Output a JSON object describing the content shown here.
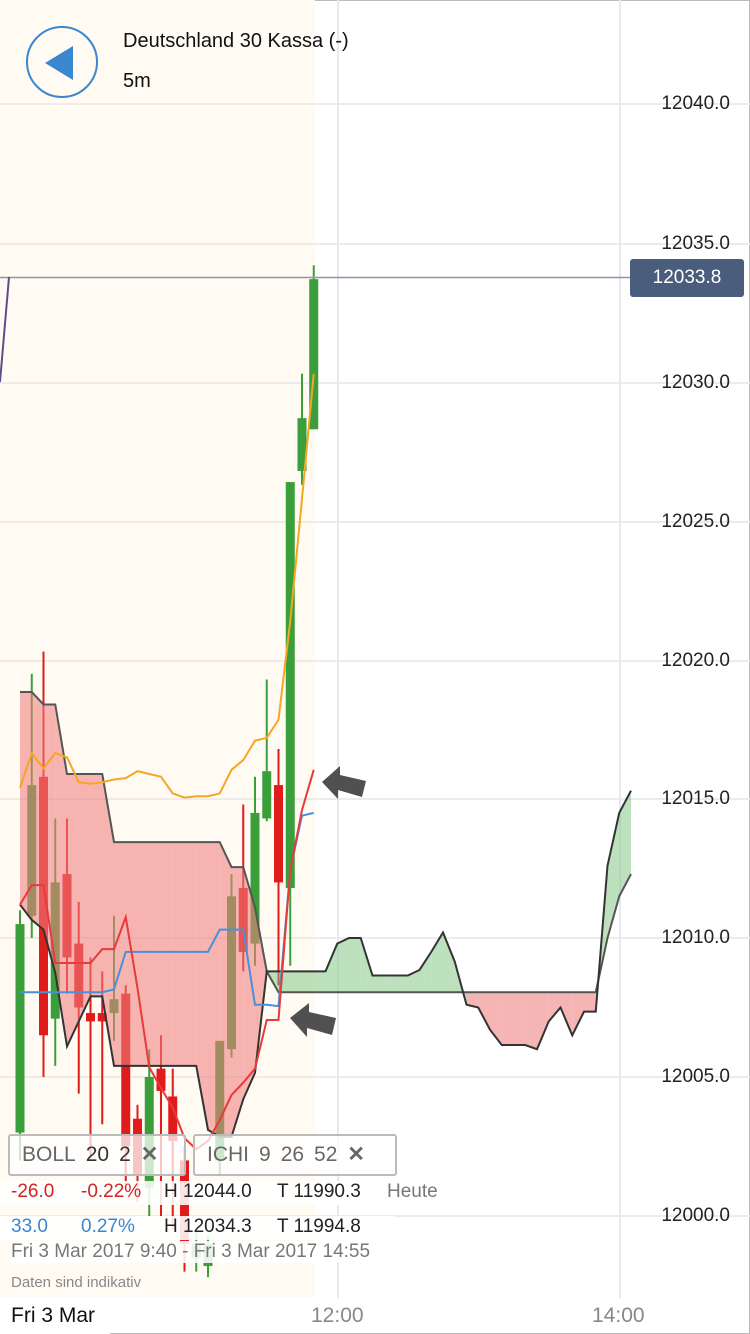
{
  "header": {
    "title": "Deutschland 30 Kassa (-)",
    "interval": "5m",
    "back_icon": "back-arrow-icon"
  },
  "colors": {
    "accent": "#3a86cf",
    "up": "#3a9e3a",
    "down": "#e01b1b",
    "bollinger": "#f5a623",
    "tenkan": "#e83a3a",
    "kijun": "#4a90d9",
    "cloud_bear": "#f08080",
    "cloud_bull": "#7cc47c",
    "price_tag": "#4b5d7c"
  },
  "y_axis": {
    "labels": [
      "12040.0",
      "12035.0",
      "12030.0",
      "12025.0",
      "12020.0",
      "12015.0",
      "12010.0",
      "12005.0",
      "12000.0"
    ],
    "current_price": "12033.8"
  },
  "x_axis": {
    "date": "Fri 3 Mar",
    "labels": [
      "12:00",
      "14:00"
    ]
  },
  "indicators": {
    "boll": {
      "name": "BOLL",
      "period": "20",
      "dev": "2"
    },
    "ichi": {
      "name": "ICHI",
      "p1": "9",
      "p2": "26",
      "p3": "52"
    },
    "remove_icon": "close-icon"
  },
  "stats": {
    "day": {
      "change": "-26.0",
      "pct": "-0.22%",
      "high": "H 12044.0",
      "low": "T 11990.3",
      "label": "Heute"
    },
    "period": {
      "change": "33.0",
      "pct": "0.27%",
      "high": "H 12034.3",
      "low": "T 11994.8"
    },
    "range": "Fri 3 Mar 2017 9:40 - Fri 3 Mar 2017 14:55",
    "note": "Daten sind indikativ"
  },
  "chart_data": {
    "type": "candlestick",
    "interval": "5m",
    "candles": [
      {
        "t": "09:45",
        "o": 12003.0,
        "h": 12011.0,
        "l": 12002.0,
        "c": 12010.5
      },
      {
        "t": "09:50",
        "o": 12010.8,
        "h": 12019.5,
        "l": 12010.0,
        "c": 12015.5
      },
      {
        "t": "09:55",
        "o": 12015.8,
        "h": 12020.3,
        "l": 12005.0,
        "c": 12006.5
      },
      {
        "t": "10:00",
        "o": 12007.1,
        "h": 12014.3,
        "l": 12005.4,
        "c": 12012.0
      },
      {
        "t": "10:05",
        "o": 12012.3,
        "h": 12014.3,
        "l": 12008.0,
        "c": 12009.3
      },
      {
        "t": "10:10",
        "o": 12009.8,
        "h": 12011.3,
        "l": 12004.4,
        "c": 12007.5
      },
      {
        "t": "10:15",
        "o": 12007.3,
        "h": 12009.3,
        "l": 12002.0,
        "c": 12007.0
      },
      {
        "t": "10:20",
        "o": 12007.3,
        "h": 12008.8,
        "l": 12003.3,
        "c": 12007.0
      },
      {
        "t": "10:25",
        "o": 12007.3,
        "h": 12010.8,
        "l": 12006.3,
        "c": 12007.8
      },
      {
        "t": "10:30",
        "o": 12008.0,
        "h": 12008.3,
        "l": 12001.0,
        "c": 12002.5
      },
      {
        "t": "10:35",
        "o": 12003.5,
        "h": 12004.0,
        "l": 12000.5,
        "c": 12001.5
      },
      {
        "t": "10:40",
        "o": 12001.0,
        "h": 12006.0,
        "l": 12000.0,
        "c": 12005.0
      },
      {
        "t": "10:45",
        "o": 12005.3,
        "h": 12006.5,
        "l": 12000.0,
        "c": 12004.5
      },
      {
        "t": "10:50",
        "o": 12004.3,
        "h": 12005.3,
        "l": 11999.5,
        "c": 12002.7
      },
      {
        "t": "10:55",
        "o": 12002.0,
        "h": 12002.5,
        "l": 11998.0,
        "c": 11999.0
      },
      {
        "t": "11:00",
        "o": 11998.5,
        "h": 11999.5,
        "l": 11998.0,
        "c": 11999.0
      },
      {
        "t": "11:05",
        "o": 11998.2,
        "h": 11999.3,
        "l": 11997.8,
        "c": 11999.0
      },
      {
        "t": "11:10",
        "o": 12002.0,
        "h": 12006.3,
        "l": 12001.5,
        "c": 12006.3
      },
      {
        "t": "11:15",
        "o": 12006.0,
        "h": 12012.3,
        "l": 12005.7,
        "c": 12011.5
      },
      {
        "t": "11:20",
        "o": 12011.8,
        "h": 12014.8,
        "l": 12008.8,
        "c": 12009.5
      },
      {
        "t": "11:25",
        "o": 12009.8,
        "h": 12015.8,
        "l": 12009.0,
        "c": 12014.5
      },
      {
        "t": "11:30",
        "o": 12014.3,
        "h": 12019.3,
        "l": 12014.2,
        "c": 12016.0
      },
      {
        "t": "11:35",
        "o": 12015.5,
        "h": 12016.8,
        "l": 12008.3,
        "c": 12012.0
      },
      {
        "t": "11:40",
        "o": 12011.8,
        "h": 12026.4,
        "l": 12009.0,
        "c": 12026.4
      },
      {
        "t": "11:45",
        "o": 12026.8,
        "h": 12030.3,
        "l": 12026.3,
        "c": 12028.7
      },
      {
        "t": "11:50",
        "o": 12028.3,
        "h": 12034.2,
        "l": 12028.3,
        "c": 12033.7
      }
    ],
    "bollinger_upper": [
      12015.4,
      12016.65,
      12016.1,
      12016.65,
      12016.5,
      12015.6,
      12015.55,
      12015.6,
      12015.7,
      12015.75,
      12016.0,
      12015.9,
      12015.8,
      12015.2,
      12015.05,
      12015.1,
      12015.1,
      12015.2,
      12016.05,
      12016.4,
      12017.1,
      12017.2,
      12017.85,
      12021.4,
      12025.8,
      12030.3
    ],
    "tenkan": [
      12011.2,
      12011.9,
      12011.9,
      12009.1,
      12009.1,
      12009.1,
      12009.1,
      12009.6,
      12009.6,
      12010.75,
      12008.2,
      12005.35,
      12004.6,
      12003.9,
      12002.8,
      12002.4,
      12002.7,
      12003.45,
      12004.35,
      12004.8,
      12005.3,
      12007.05,
      12007.05,
      12012.45,
      12014.6,
      12016.05
    ],
    "kijun": [
      12008.05,
      12008.05,
      12008.05,
      12008.05,
      12008.05,
      12008.05,
      12008.05,
      12008.05,
      12008.15,
      12009.5,
      12009.5,
      12009.5,
      12009.5,
      12009.5,
      12009.5,
      12009.5,
      12009.5,
      12010.3,
      12010.3,
      12010.3,
      12007.6,
      12007.6,
      12007.55,
      12012.45,
      12014.4,
      12014.5
    ],
    "senkou_a": [
      12011.2,
      12010.65,
      12010.3,
      12008.75,
      12006.1,
      12007.0,
      12007.9,
      12007.9,
      12005.4,
      12005.4,
      12005.4,
      12005.4,
      12005.4,
      12005.4,
      12005.4,
      12005.4,
      12003.1,
      12002.85,
      12002.85,
      12004.2,
      12005.15,
      12008.8,
      12008.8,
      12008.8,
      12008.8,
      12008.8,
      12008.8,
      12009.8,
      12010.0,
      12010.0,
      12008.65,
      12008.65,
      12008.65,
      12008.65,
      12008.85,
      12009.5,
      12010.2,
      12009.15,
      12007.6,
      12007.5,
      12006.7,
      12006.15,
      12006.15,
      12006.15,
      12006.0,
      12007.0,
      12007.5,
      12006.5,
      12007.35,
      12007.35,
      12012.6,
      12014.5,
      12015.3
    ],
    "senkou_b": [
      12018.85,
      12018.85,
      12018.4,
      12018.4,
      12015.9,
      12015.9,
      12015.9,
      12015.9,
      12013.45,
      12013.45,
      12013.45,
      12013.45,
      12013.45,
      12013.45,
      12013.45,
      12013.45,
      12013.45,
      12013.45,
      12012.55,
      12012.55,
      12011.1,
      12008.8,
      12008.05,
      12008.05,
      12008.05,
      12008.05,
      12008.05,
      12008.05,
      12008.05,
      12008.05,
      12008.05,
      12008.05,
      12008.05,
      12008.05,
      12008.05,
      12008.05,
      12008.05,
      12008.05,
      12008.05,
      12008.05,
      12008.05,
      12008.05,
      12008.05,
      12008.05,
      12008.05,
      12008.05,
      12008.05,
      12008.05,
      12008.05,
      12008.05,
      12010.0,
      12011.5,
      12012.3
    ],
    "ylim": [
      11996.5,
      12043.5
    ]
  }
}
